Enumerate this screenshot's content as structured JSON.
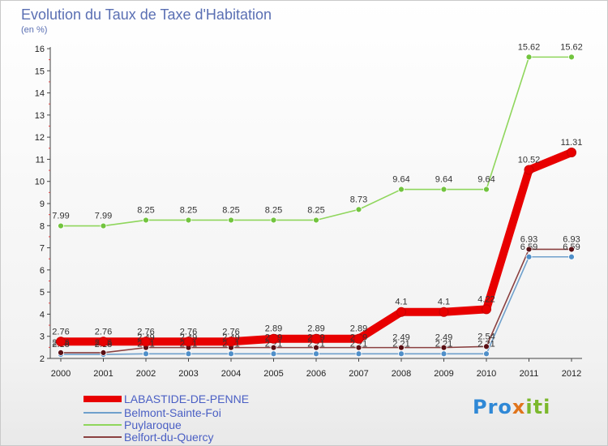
{
  "chart_data": {
    "type": "line",
    "title": "Evolution du Taux de Taxe d'Habitation",
    "subtitle": "(en %)",
    "categories": [
      "2000",
      "2001",
      "2002",
      "2003",
      "2004",
      "2005",
      "2006",
      "2007",
      "2008",
      "2009",
      "2010",
      "2011",
      "2012"
    ],
    "ylim": [
      2,
      16
    ],
    "yticks": [
      "2",
      "3",
      "4",
      "5",
      "6",
      "7",
      "8",
      "9",
      "10",
      "11",
      "12",
      "13",
      "14",
      "15",
      "16"
    ],
    "series": [
      {
        "name": "LABASTIDE-DE-PENNE",
        "color": "#e80000",
        "values": [
          2.76,
          2.76,
          2.76,
          2.76,
          2.76,
          2.89,
          2.89,
          2.89,
          4.1,
          4.1,
          4.22,
          10.52,
          11.31
        ],
        "labels": [
          "2.76",
          "2.76",
          "2.76",
          "2.76",
          "2.76",
          "2.89",
          "2.89",
          "2.89",
          "4.1",
          "4.1",
          "4.22",
          "10.52",
          "11.31"
        ]
      },
      {
        "name": "Belmont-Sainte-Foi",
        "color": "#6fa0cc",
        "values": [
          2.18,
          2.18,
          2.21,
          2.21,
          2.21,
          2.21,
          2.21,
          2.21,
          2.21,
          2.21,
          2.21,
          6.59,
          6.59
        ],
        "labels": [
          "2.18",
          "2.18",
          "2.21",
          "2.21",
          "2.21",
          "2.21",
          "2.21",
          "2.21",
          "2.21",
          "2.21",
          "2.21",
          "6.59",
          "6.59"
        ]
      },
      {
        "name": "Puylaroque",
        "color": "#8fd65c",
        "values": [
          7.99,
          7.99,
          8.25,
          8.25,
          8.25,
          8.25,
          8.25,
          8.73,
          9.64,
          9.64,
          9.64,
          15.62,
          15.62
        ],
        "labels": [
          "7.99",
          "7.99",
          "8.25",
          "8.25",
          "8.25",
          "8.25",
          "8.25",
          "8.73",
          "9.64",
          "9.64",
          "9.64",
          "15.62",
          "15.62"
        ]
      },
      {
        "name": "Belfort-du-Quercy",
        "color": "#8a4040",
        "values": [
          2.26,
          2.26,
          2.49,
          2.49,
          2.49,
          2.49,
          2.49,
          2.49,
          2.49,
          2.49,
          2.54,
          6.93,
          6.93
        ],
        "labels": [
          "2.26",
          "2.26",
          "2.49",
          "2.49",
          "2.49",
          "2.49",
          "2.49",
          "2.49",
          "2.49",
          "2.49",
          "2.54",
          "6.93",
          "6.93"
        ]
      }
    ],
    "legend": "bottom-left",
    "grid": false
  },
  "logo": {
    "p1": "Pro",
    "p2": "x",
    "p3": "iti"
  }
}
